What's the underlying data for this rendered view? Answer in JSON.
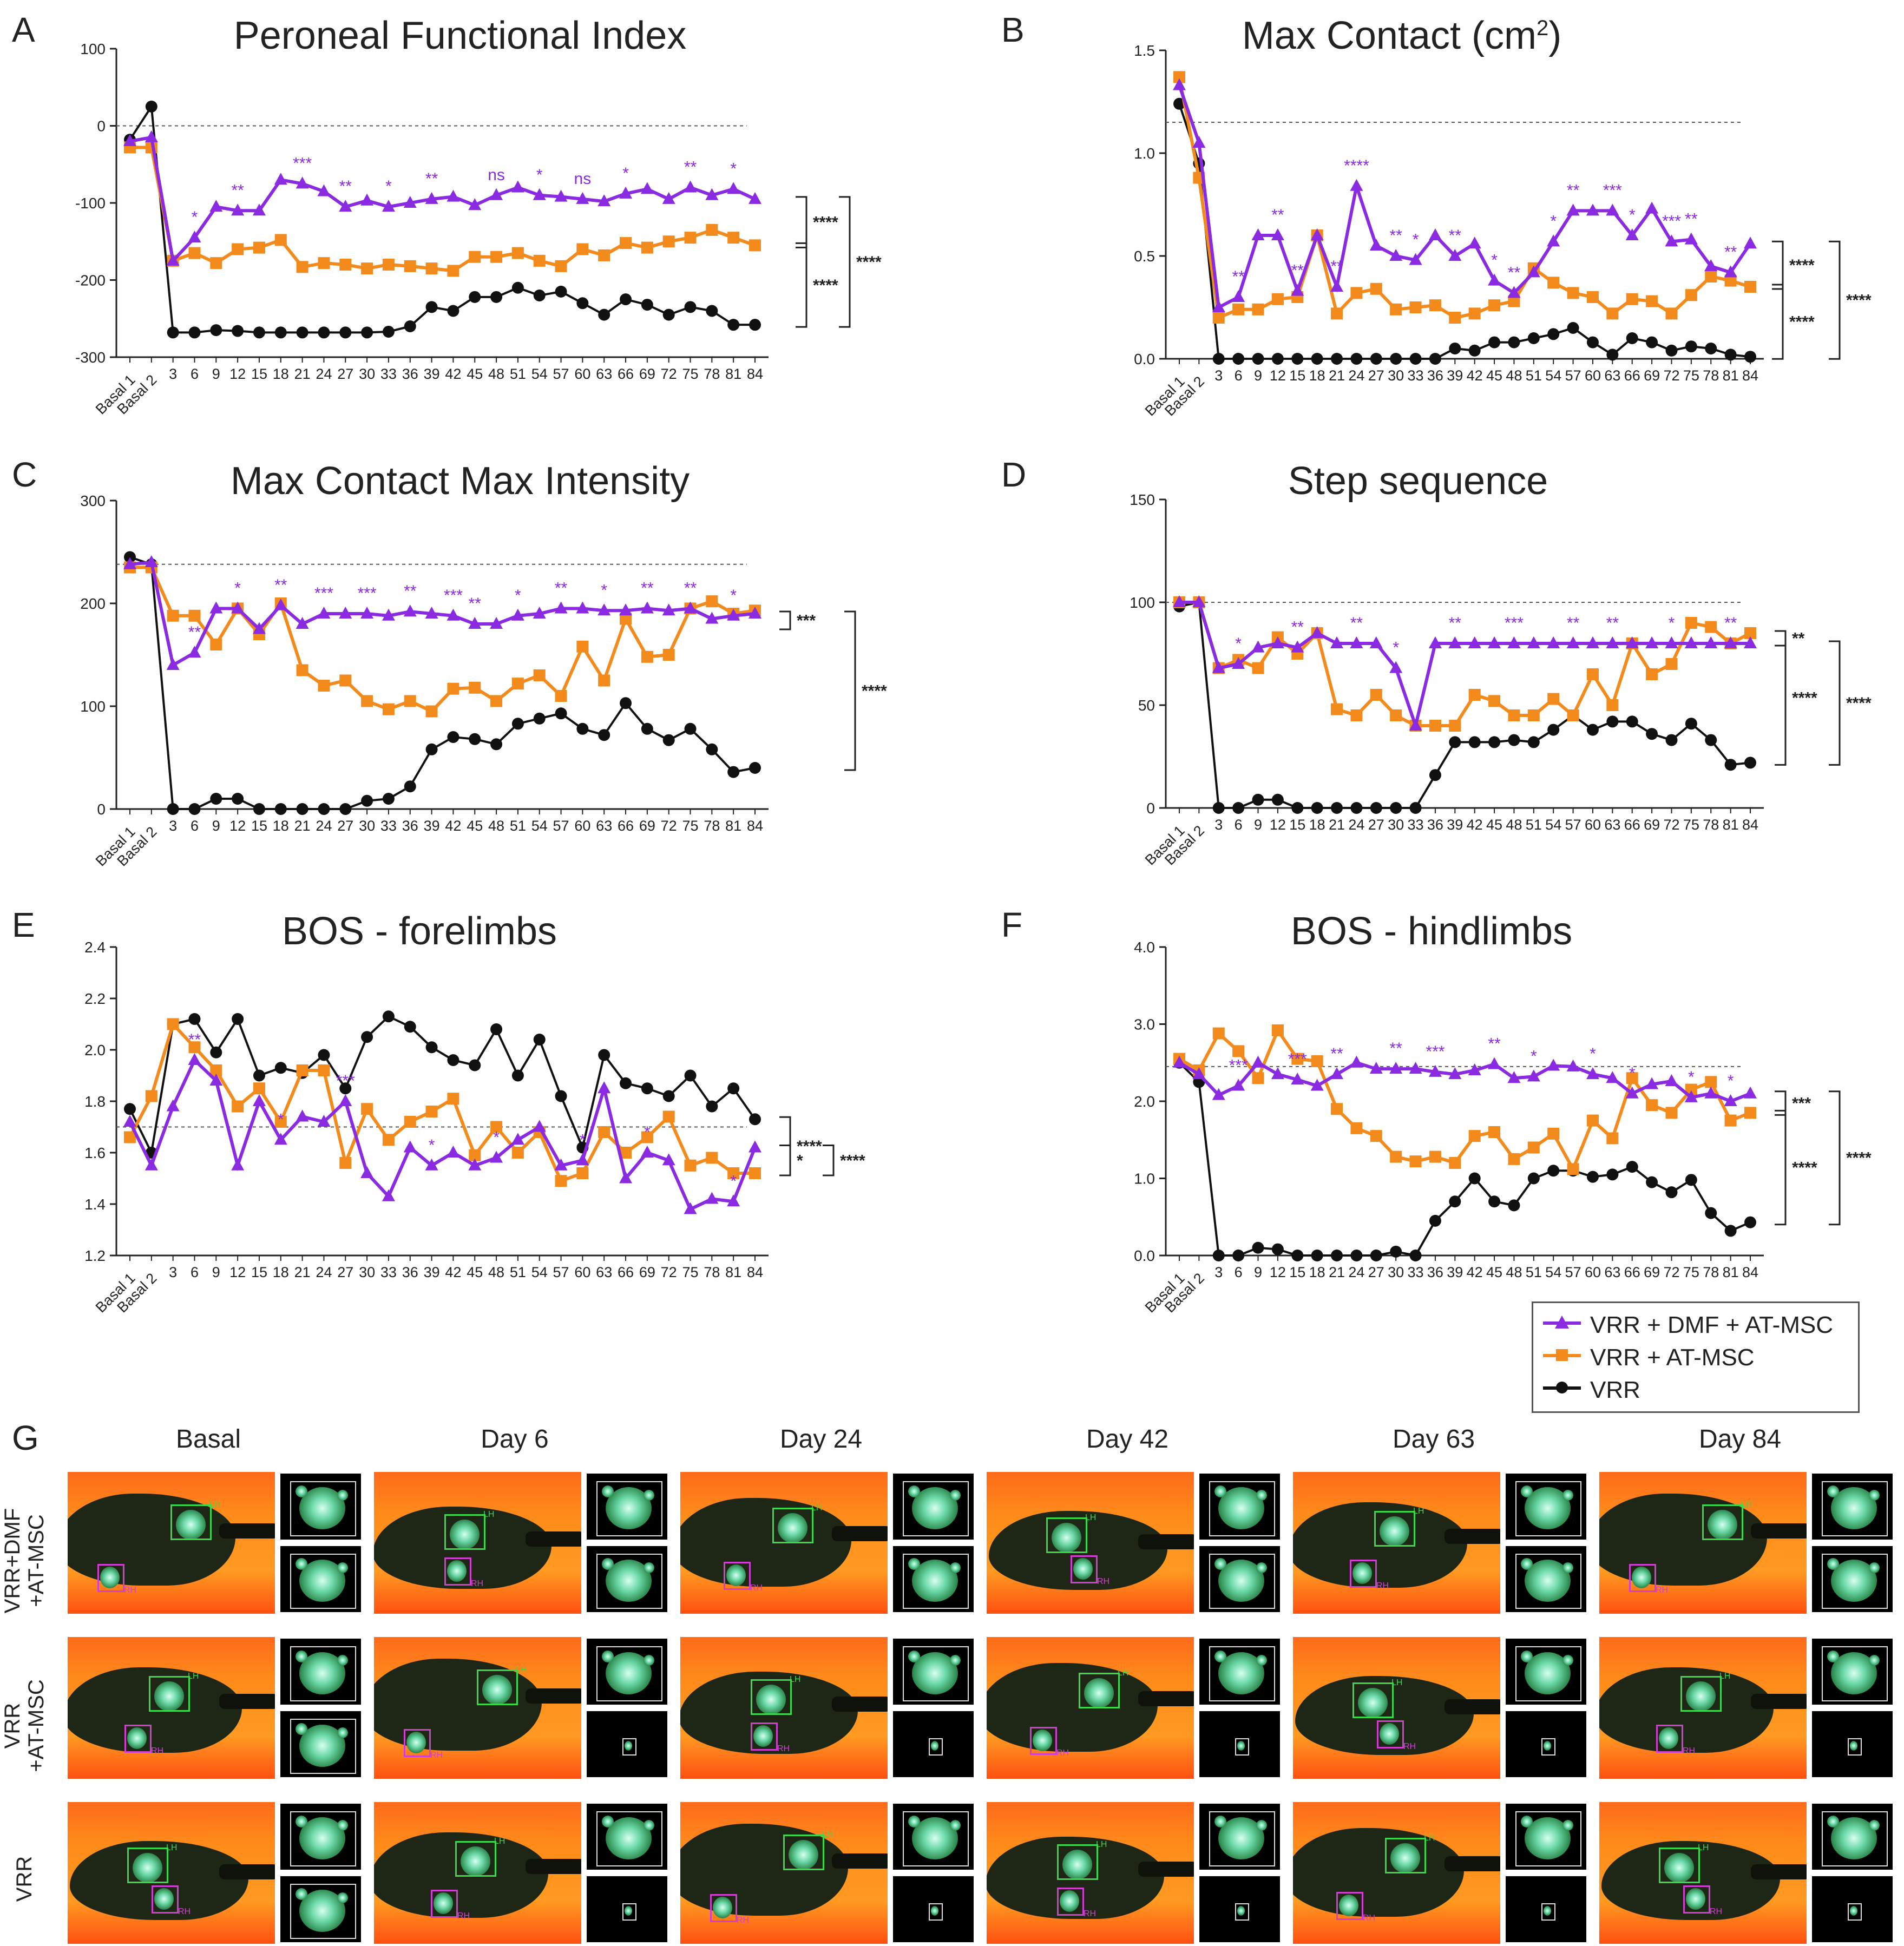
{
  "x_labels": [
    "Basal 1",
    "Basal 2",
    "3",
    "6",
    "9",
    "12",
    "15",
    "18",
    "21",
    "24",
    "27",
    "30",
    "33",
    "36",
    "39",
    "42",
    "45",
    "48",
    "51",
    "54",
    "57",
    "60",
    "63",
    "66",
    "69",
    "72",
    "75",
    "78",
    "81",
    "84"
  ],
  "colors": {
    "dmf": "#8a2be2",
    "atmsc": "#f28a1c",
    "vrr": "#111111"
  },
  "legend": {
    "items": [
      {
        "label": "VRR + DMF + AT-MSC",
        "color": "#8a2be2",
        "marker": "triangle"
      },
      {
        "label": "VRR + AT-MSC",
        "color": "#f28a1c",
        "marker": "square"
      },
      {
        "label": "VRR",
        "color": "#111111",
        "marker": "circle"
      }
    ]
  },
  "chart_data": [
    {
      "letter": "A",
      "title": "Peroneal Functional Index",
      "type": "line",
      "ylim": [
        -300,
        100
      ],
      "yticks": [
        -300,
        -200,
        -100,
        0,
        100
      ],
      "ytick_labels": [
        "-300",
        "-200",
        "-100",
        "0",
        "100"
      ],
      "reference_line": 0,
      "series": [
        {
          "key": "dmf",
          "values": [
            -20,
            -15,
            -175,
            -145,
            -105,
            -110,
            -110,
            -70,
            -75,
            -85,
            -105,
            -97,
            -105,
            -100,
            -95,
            -92,
            -103,
            -90,
            -80,
            -90,
            -92,
            -95,
            -98,
            -88,
            -82,
            -95,
            -80,
            -90,
            -82,
            -95
          ]
        },
        {
          "key": "atmsc",
          "values": [
            -28,
            -28,
            -175,
            -165,
            -178,
            -160,
            -158,
            -148,
            -183,
            -178,
            -180,
            -185,
            -180,
            -182,
            -185,
            -188,
            -170,
            -170,
            -165,
            -175,
            -182,
            -160,
            -168,
            -152,
            -158,
            -150,
            -145,
            -135,
            -145,
            -155
          ]
        },
        {
          "key": "vrr",
          "values": [
            -18,
            25,
            -268,
            -268,
            -265,
            -266,
            -268,
            -268,
            -268,
            -268,
            -268,
            -268,
            -267,
            -260,
            -235,
            -240,
            -222,
            -222,
            -210,
            -220,
            -215,
            -230,
            -245,
            -225,
            -232,
            -245,
            -235,
            -240,
            -258,
            -258
          ]
        }
      ],
      "brackets": [
        {
          "label": "****"
        },
        {
          "label": "****"
        },
        {
          "label": "****"
        }
      ],
      "annotations": [
        "*",
        "**",
        "***",
        "**",
        "*",
        "**",
        "ns",
        "*",
        "ns",
        "*",
        "**",
        "*"
      ]
    },
    {
      "letter": "B",
      "title": "Max Contact (cm",
      "title_sup": "2",
      "title_end": ")",
      "type": "line",
      "ylim": [
        0,
        1.5
      ],
      "yticks": [
        0,
        0.5,
        1,
        1.5
      ],
      "ytick_labels": [
        "0.0",
        "0.5",
        "1.0",
        "1.5"
      ],
      "reference_line": 1.15,
      "series": [
        {
          "key": "dmf",
          "values": [
            1.33,
            1.05,
            0.25,
            0.3,
            0.6,
            0.6,
            0.33,
            0.6,
            0.35,
            0.84,
            0.55,
            0.5,
            0.48,
            0.6,
            0.5,
            0.56,
            0.38,
            0.32,
            0.42,
            0.57,
            0.72,
            0.72,
            0.72,
            0.6,
            0.73,
            0.57,
            0.58,
            0.45,
            0.42,
            0.56
          ]
        },
        {
          "key": "atmsc",
          "values": [
            1.37,
            0.88,
            0.2,
            0.24,
            0.24,
            0.29,
            0.3,
            0.6,
            0.22,
            0.32,
            0.34,
            0.24,
            0.25,
            0.26,
            0.2,
            0.22,
            0.26,
            0.28,
            0.44,
            0.37,
            0.32,
            0.3,
            0.22,
            0.29,
            0.28,
            0.22,
            0.31,
            0.4,
            0.38,
            0.35
          ]
        },
        {
          "key": "vrr",
          "values": [
            1.24,
            0.95,
            0.0,
            0.0,
            0.0,
            0.0,
            0.0,
            0.0,
            0.0,
            0.0,
            0.0,
            0.0,
            0.0,
            0.0,
            0.05,
            0.04,
            0.08,
            0.08,
            0.1,
            0.12,
            0.15,
            0.08,
            0.02,
            0.1,
            0.08,
            0.04,
            0.06,
            0.05,
            0.02,
            0.01
          ]
        }
      ],
      "brackets": [
        {
          "label": "****"
        },
        {
          "label": "****"
        },
        {
          "label": "****"
        }
      ],
      "annotations": [
        "**",
        "**",
        "**",
        "**",
        "****",
        "**",
        "*",
        "**",
        "*",
        "**",
        "*",
        "**",
        "***",
        "*",
        "***",
        "**",
        "**"
      ]
    },
    {
      "letter": "C",
      "title": "Max Contact Max Intensity",
      "type": "line",
      "ylim": [
        0,
        300
      ],
      "yticks": [
        0,
        100,
        200,
        300
      ],
      "ytick_labels": [
        "0",
        "100",
        "200",
        "300"
      ],
      "reference_line": 238,
      "series": [
        {
          "key": "dmf",
          "values": [
            238,
            240,
            140,
            152,
            195,
            195,
            175,
            198,
            180,
            190,
            190,
            190,
            188,
            192,
            190,
            188,
            180,
            180,
            188,
            190,
            195,
            195,
            193,
            193,
            195,
            193,
            195,
            185,
            188,
            190
          ]
        },
        {
          "key": "atmsc",
          "values": [
            235,
            235,
            188,
            188,
            160,
            195,
            170,
            200,
            135,
            120,
            125,
            105,
            97,
            105,
            95,
            117,
            118,
            105,
            122,
            130,
            110,
            158,
            125,
            185,
            148,
            150,
            195,
            202,
            190,
            193
          ]
        },
        {
          "key": "vrr",
          "values": [
            245,
            238,
            0,
            0,
            10,
            10,
            0,
            0,
            0,
            0,
            0,
            8,
            10,
            22,
            58,
            70,
            68,
            63,
            83,
            88,
            93,
            78,
            72,
            103,
            78,
            67,
            78,
            58,
            36,
            40
          ]
        }
      ],
      "brackets": [
        {
          "label": "***"
        },
        {
          "label": "****"
        }
      ],
      "annotations": [
        "**",
        "*",
        "**",
        "***",
        "***",
        "**",
        "***",
        "**",
        "*",
        "**",
        "*",
        "**",
        "**",
        "*"
      ]
    },
    {
      "letter": "D",
      "title": "Step sequence",
      "type": "line",
      "ylim": [
        0,
        150
      ],
      "yticks": [
        0,
        50,
        100,
        150
      ],
      "ytick_labels": [
        "0",
        "50",
        "100",
        "150"
      ],
      "reference_line": 100,
      "series": [
        {
          "key": "dmf",
          "values": [
            100,
            100,
            68,
            70,
            78,
            80,
            78,
            85,
            80,
            80,
            80,
            68,
            40,
            80,
            80,
            80,
            80,
            80,
            80,
            80,
            80,
            80,
            80,
            80,
            80,
            80,
            80,
            80,
            80,
            80
          ]
        },
        {
          "key": "atmsc",
          "values": [
            100,
            100,
            68,
            72,
            68,
            83,
            75,
            85,
            48,
            45,
            55,
            45,
            40,
            40,
            40,
            55,
            52,
            45,
            45,
            53,
            45,
            65,
            50,
            80,
            65,
            70,
            90,
            88,
            80,
            85
          ]
        },
        {
          "key": "vrr",
          "values": [
            98,
            100,
            0,
            0,
            4,
            4,
            0,
            0,
            0,
            0,
            0,
            0,
            0,
            16,
            32,
            32,
            32,
            33,
            32,
            38,
            45,
            38,
            42,
            42,
            36,
            33,
            41,
            33,
            21,
            22
          ]
        }
      ],
      "brackets": [
        {
          "label": "**"
        },
        {
          "label": "****"
        },
        {
          "label": "****"
        }
      ],
      "annotations": [
        "*",
        "**",
        "**",
        "*",
        "**",
        "***",
        "**",
        "**",
        "*",
        "**"
      ]
    },
    {
      "letter": "E",
      "title": "BOS - forelimbs",
      "type": "line",
      "ylim": [
        1.2,
        2.4
      ],
      "yticks": [
        1.2,
        1.4,
        1.6,
        1.8,
        2.0,
        2.2,
        2.4
      ],
      "ytick_labels": [
        "1.2",
        "1.4",
        "1.6",
        "1.8",
        "2.0",
        "2.2",
        "2.4"
      ],
      "reference_line": 1.7,
      "series": [
        {
          "key": "dmf",
          "values": [
            1.72,
            1.55,
            1.78,
            1.96,
            1.88,
            1.55,
            1.8,
            1.65,
            1.74,
            1.72,
            1.8,
            1.52,
            1.43,
            1.62,
            1.55,
            1.6,
            1.55,
            1.58,
            1.65,
            1.7,
            1.55,
            1.57,
            1.85,
            1.5,
            1.6,
            1.57,
            1.38,
            1.42,
            1.41,
            1.62
          ]
        },
        {
          "key": "atmsc",
          "values": [
            1.66,
            1.82,
            2.1,
            2.01,
            1.92,
            1.78,
            1.85,
            1.72,
            1.92,
            1.92,
            1.56,
            1.77,
            1.65,
            1.72,
            1.76,
            1.81,
            1.59,
            1.7,
            1.6,
            1.68,
            1.49,
            1.52,
            1.68,
            1.6,
            1.66,
            1.74,
            1.55,
            1.58,
            1.52,
            1.52
          ]
        },
        {
          "key": "vrr",
          "values": [
            1.77,
            1.6,
            2.1,
            2.12,
            1.99,
            2.12,
            1.9,
            1.93,
            1.91,
            1.98,
            1.85,
            2.05,
            2.13,
            2.09,
            2.01,
            1.96,
            1.94,
            2.08,
            1.9,
            2.04,
            1.82,
            1.62,
            1.98,
            1.87,
            1.85,
            1.82,
            1.9,
            1.78,
            1.85,
            1.73
          ]
        }
      ],
      "brackets": [
        {
          "label": "****"
        },
        {
          "label": "*"
        },
        {
          "label": "****"
        }
      ],
      "annotations": [
        "**",
        "*",
        "***",
        "*",
        "*",
        "*",
        "*",
        "*"
      ]
    },
    {
      "letter": "F",
      "title": "BOS - hindlimbs",
      "type": "line",
      "ylim": [
        0,
        4
      ],
      "yticks": [
        0,
        1,
        2,
        3,
        4
      ],
      "ytick_labels": [
        "0.0",
        "1.0",
        "2.0",
        "3.0",
        "4.0"
      ],
      "reference_line": 2.45,
      "series": [
        {
          "key": "dmf",
          "values": [
            2.5,
            2.35,
            2.08,
            2.2,
            2.5,
            2.35,
            2.28,
            2.2,
            2.35,
            2.5,
            2.42,
            2.42,
            2.42,
            2.38,
            2.35,
            2.4,
            2.48,
            2.3,
            2.32,
            2.46,
            2.45,
            2.35,
            2.3,
            2.1,
            2.22,
            2.26,
            2.05,
            2.1,
            2.0,
            2.1
          ]
        },
        {
          "key": "atmsc",
          "values": [
            2.55,
            2.4,
            2.88,
            2.65,
            2.3,
            2.92,
            2.55,
            2.52,
            1.9,
            1.65,
            1.55,
            1.28,
            1.22,
            1.28,
            1.2,
            1.55,
            1.6,
            1.25,
            1.4,
            1.58,
            1.12,
            1.75,
            1.52,
            2.3,
            1.95,
            1.85,
            2.15,
            2.25,
            1.75,
            1.85
          ]
        },
        {
          "key": "vrr",
          "values": [
            2.5,
            2.25,
            0.0,
            0.0,
            0.1,
            0.08,
            0.0,
            0.0,
            0.0,
            0.0,
            0.0,
            0.05,
            0.0,
            0.45,
            0.7,
            1.0,
            0.7,
            0.65,
            1.0,
            1.1,
            1.1,
            1.02,
            1.05,
            1.15,
            0.95,
            0.82,
            0.98,
            0.55,
            0.32,
            0.43
          ]
        }
      ],
      "brackets": [
        {
          "label": "***"
        },
        {
          "label": "****"
        },
        {
          "label": "****"
        }
      ],
      "annotations": [
        "***",
        "***",
        "**",
        "**",
        "***",
        "**",
        "*",
        "*",
        "*",
        "*",
        "*"
      ]
    }
  ],
  "panel_g": {
    "letter": "G",
    "columns": [
      "Basal",
      "Day 6",
      "Day 24",
      "Day 42",
      "Day 63",
      "Day 84"
    ],
    "rows": [
      "VRR+DMF\n+AT-MSC",
      "VRR\n+AT-MSC",
      "VRR"
    ],
    "paw_labels": {
      "lh": "LH",
      "rh": "RH"
    }
  }
}
